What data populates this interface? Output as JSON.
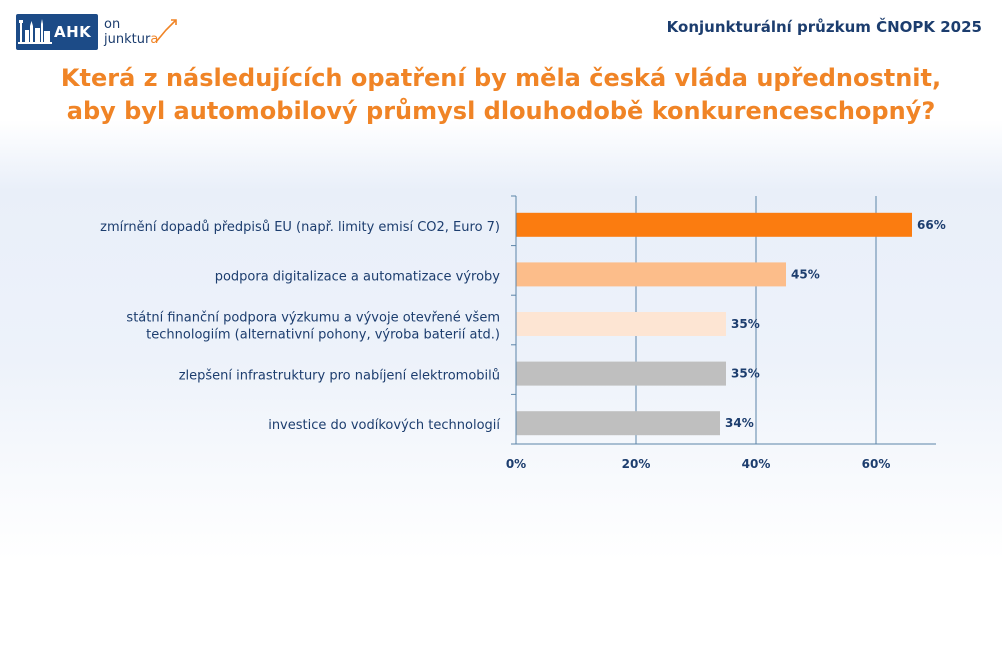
{
  "header": {
    "logo_text": "AHK",
    "logo_line1": "on",
    "logo_line2": "junktur",
    "logo_line2_tail": "a",
    "survey_name": "Konjunkturální průzkum ČNOPK 2025"
  },
  "colors": {
    "title": "#f08426",
    "text": "#1c3d6e",
    "gridline": "#5b84a8"
  },
  "chart_data": {
    "type": "bar",
    "orientation": "horizontal",
    "title_lines": [
      "Která z následujících opatření by měla česká vláda upřednostnit,",
      "aby byl automobilový průmysl dlouhodobě konkurenceschopný?"
    ],
    "categories": [
      [
        "zmírnění dopadů předpisů EU (např. limity emisí CO2, Euro 7)"
      ],
      [
        "podpora digitalizace a automatizace výroby"
      ],
      [
        "státní finanční podpora výzkumu a vývoje otevřené všem",
        "technologiím (alternativní pohony, výroba baterií atd.)"
      ],
      [
        "zlepšení infrastruktury pro nabíjení elektromobilů"
      ],
      [
        "investice do vodíkových technologií"
      ]
    ],
    "values": [
      66,
      45,
      35,
      35,
      34
    ],
    "value_labels": [
      "66%",
      "45%",
      "35%",
      "35%",
      "34%"
    ],
    "bar_colors": [
      "#fb7c10",
      "#fcbd8a",
      "#fde5d3",
      "#bfbfbf",
      "#bfbfbf"
    ],
    "xlim": [
      0,
      70
    ],
    "xticks": [
      0,
      20,
      40,
      60
    ],
    "xtick_labels": [
      "0%",
      "20%",
      "40%",
      "60%"
    ],
    "grid": true,
    "legend": "none"
  }
}
